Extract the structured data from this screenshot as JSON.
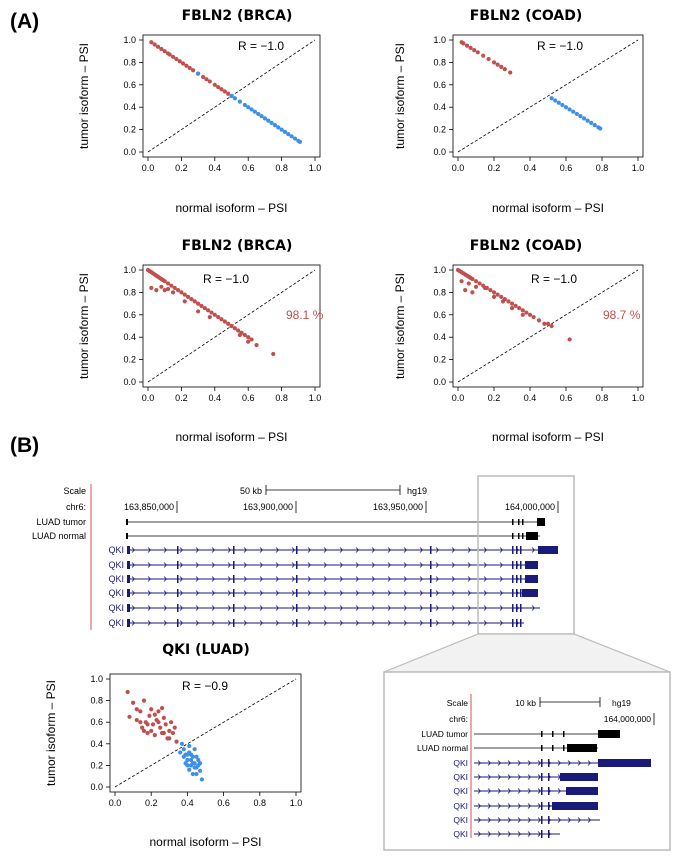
{
  "panel_labels": {
    "a": "(A)",
    "b": "(B)"
  },
  "colors": {
    "tumor": "#c0504d",
    "normal": "#3d8fe8",
    "navy": "#1a1a7a",
    "red_line": "#d05060",
    "gray_frame": "#bbbbbb"
  },
  "chart_data": [
    {
      "type": "scatter",
      "title": "FBLN2 (BRCA)",
      "xlabel": "normal isoform – PSI",
      "ylabel": "tumor isoform – PSI",
      "xlim": [
        0,
        1
      ],
      "ylim": [
        0,
        1
      ],
      "xticks": [
        "0.0",
        "0.2",
        "0.4",
        "0.6",
        "0.8",
        "1.0"
      ],
      "yticks": [
        "0.0",
        "0.2",
        "0.4",
        "0.6",
        "0.8",
        "1.0"
      ],
      "annotation": "R = −1.0",
      "diagonal": true,
      "series": [
        {
          "color": "tumor",
          "points": [
            [
              0.02,
              0.98
            ],
            [
              0.04,
              0.96
            ],
            [
              0.06,
              0.94
            ],
            [
              0.08,
              0.92
            ],
            [
              0.1,
              0.9
            ],
            [
              0.12,
              0.88
            ],
            [
              0.13,
              0.87
            ],
            [
              0.15,
              0.85
            ],
            [
              0.17,
              0.83
            ],
            [
              0.19,
              0.81
            ],
            [
              0.21,
              0.79
            ],
            [
              0.23,
              0.77
            ],
            [
              0.25,
              0.75
            ],
            [
              0.27,
              0.73
            ],
            [
              0.3,
              0.7
            ],
            [
              0.33,
              0.67
            ],
            [
              0.35,
              0.65
            ],
            [
              0.37,
              0.63
            ],
            [
              0.4,
              0.6
            ],
            [
              0.42,
              0.58
            ],
            [
              0.44,
              0.56
            ],
            [
              0.46,
              0.54
            ],
            [
              0.48,
              0.52
            ]
          ]
        },
        {
          "color": "normal",
          "points": [
            [
              0.3,
              0.7
            ],
            [
              0.5,
              0.5
            ],
            [
              0.52,
              0.48
            ],
            [
              0.55,
              0.45
            ],
            [
              0.58,
              0.42
            ],
            [
              0.6,
              0.4
            ],
            [
              0.62,
              0.38
            ],
            [
              0.64,
              0.36
            ],
            [
              0.66,
              0.34
            ],
            [
              0.68,
              0.32
            ],
            [
              0.7,
              0.3
            ],
            [
              0.72,
              0.28
            ],
            [
              0.74,
              0.26
            ],
            [
              0.76,
              0.24
            ],
            [
              0.78,
              0.22
            ],
            [
              0.8,
              0.2
            ],
            [
              0.82,
              0.18
            ],
            [
              0.84,
              0.16
            ],
            [
              0.86,
              0.14
            ],
            [
              0.88,
              0.12
            ],
            [
              0.9,
              0.1
            ],
            [
              0.91,
              0.09
            ]
          ]
        }
      ]
    },
    {
      "type": "scatter",
      "title": "FBLN2 (COAD)",
      "xlabel": "normal isoform – PSI",
      "ylabel": "tumor isoform – PSI",
      "xlim": [
        0,
        1
      ],
      "ylim": [
        0,
        1
      ],
      "xticks": [
        "0.0",
        "0.2",
        "0.4",
        "0.6",
        "0.8",
        "1.0"
      ],
      "yticks": [
        "0.0",
        "0.2",
        "0.4",
        "0.6",
        "0.8",
        "1.0"
      ],
      "annotation": "R = −1.0",
      "diagonal": true,
      "series": [
        {
          "color": "tumor",
          "points": [
            [
              0.02,
              0.98
            ],
            [
              0.03,
              0.97
            ],
            [
              0.05,
              0.95
            ],
            [
              0.07,
              0.93
            ],
            [
              0.09,
              0.91
            ],
            [
              0.11,
              0.89
            ],
            [
              0.14,
              0.86
            ],
            [
              0.17,
              0.83
            ],
            [
              0.2,
              0.8
            ],
            [
              0.22,
              0.78
            ],
            [
              0.24,
              0.76
            ],
            [
              0.26,
              0.74
            ],
            [
              0.29,
              0.71
            ]
          ]
        },
        {
          "color": "normal",
          "points": [
            [
              0.52,
              0.48
            ],
            [
              0.54,
              0.46
            ],
            [
              0.56,
              0.44
            ],
            [
              0.58,
              0.42
            ],
            [
              0.6,
              0.4
            ],
            [
              0.62,
              0.38
            ],
            [
              0.64,
              0.36
            ],
            [
              0.66,
              0.34
            ],
            [
              0.68,
              0.32
            ],
            [
              0.7,
              0.3
            ],
            [
              0.72,
              0.28
            ],
            [
              0.74,
              0.26
            ],
            [
              0.76,
              0.24
            ],
            [
              0.78,
              0.22
            ],
            [
              0.79,
              0.21
            ]
          ]
        }
      ]
    },
    {
      "type": "scatter",
      "title": "FBLN2 (BRCA)",
      "xlabel": "normal isoform – PSI",
      "ylabel": "tumor isoform – PSI",
      "xlim": [
        0,
        1
      ],
      "ylim": [
        0,
        1
      ],
      "xticks": [
        "0.0",
        "0.2",
        "0.4",
        "0.6",
        "0.8",
        "1.0"
      ],
      "yticks": [
        "0.0",
        "0.2",
        "0.4",
        "0.6",
        "0.8",
        "1.0"
      ],
      "annotation": "R = −1.0",
      "percent_label": "98.1 %",
      "diagonal": true,
      "series": [
        {
          "color": "tumor",
          "points": [
            [
              0.0,
              1.0
            ],
            [
              0.01,
              0.99
            ],
            [
              0.02,
              0.98
            ],
            [
              0.03,
              0.97
            ],
            [
              0.04,
              0.96
            ],
            [
              0.05,
              0.95
            ],
            [
              0.06,
              0.94
            ],
            [
              0.07,
              0.93
            ],
            [
              0.08,
              0.92
            ],
            [
              0.09,
              0.91
            ],
            [
              0.1,
              0.9
            ],
            [
              0.12,
              0.88
            ],
            [
              0.14,
              0.86
            ],
            [
              0.16,
              0.84
            ],
            [
              0.18,
              0.82
            ],
            [
              0.2,
              0.8
            ],
            [
              0.22,
              0.78
            ],
            [
              0.24,
              0.76
            ],
            [
              0.26,
              0.74
            ],
            [
              0.28,
              0.72
            ],
            [
              0.3,
              0.7
            ],
            [
              0.32,
              0.68
            ],
            [
              0.34,
              0.66
            ],
            [
              0.36,
              0.64
            ],
            [
              0.38,
              0.62
            ],
            [
              0.4,
              0.6
            ],
            [
              0.42,
              0.58
            ],
            [
              0.44,
              0.56
            ],
            [
              0.46,
              0.54
            ],
            [
              0.48,
              0.52
            ],
            [
              0.5,
              0.5
            ],
            [
              0.52,
              0.48
            ],
            [
              0.54,
              0.46
            ],
            [
              0.56,
              0.44
            ],
            [
              0.58,
              0.42
            ],
            [
              0.6,
              0.4
            ],
            [
              0.62,
              0.38
            ],
            [
              0.05,
              0.82
            ],
            [
              0.08,
              0.85
            ],
            [
              0.1,
              0.82
            ],
            [
              0.15,
              0.8
            ],
            [
              0.22,
              0.72
            ],
            [
              0.3,
              0.63
            ],
            [
              0.37,
              0.58
            ],
            [
              0.55,
              0.42
            ],
            [
              0.6,
              0.36
            ],
            [
              0.65,
              0.33
            ],
            [
              0.75,
              0.25
            ],
            [
              0.02,
              0.84
            ],
            [
              0.12,
              0.83
            ]
          ]
        }
      ]
    },
    {
      "type": "scatter",
      "title": "FBLN2 (COAD)",
      "xlabel": "normal isoform – PSI",
      "ylabel": "tumor isoform – PSI",
      "xlim": [
        0,
        1
      ],
      "ylim": [
        0,
        1
      ],
      "xticks": [
        "0.0",
        "0.2",
        "0.4",
        "0.6",
        "0.8",
        "1.0"
      ],
      "yticks": [
        "0.0",
        "0.2",
        "0.4",
        "0.6",
        "0.8",
        "1.0"
      ],
      "annotation": "R = −1.0",
      "percent_label": "98.7 %",
      "diagonal": true,
      "series": [
        {
          "color": "tumor",
          "points": [
            [
              0.0,
              1.0
            ],
            [
              0.01,
              0.99
            ],
            [
              0.02,
              0.98
            ],
            [
              0.03,
              0.97
            ],
            [
              0.04,
              0.96
            ],
            [
              0.05,
              0.95
            ],
            [
              0.06,
              0.94
            ],
            [
              0.07,
              0.93
            ],
            [
              0.08,
              0.92
            ],
            [
              0.1,
              0.9
            ],
            [
              0.12,
              0.88
            ],
            [
              0.14,
              0.86
            ],
            [
              0.16,
              0.84
            ],
            [
              0.18,
              0.82
            ],
            [
              0.2,
              0.8
            ],
            [
              0.22,
              0.78
            ],
            [
              0.24,
              0.76
            ],
            [
              0.26,
              0.74
            ],
            [
              0.28,
              0.72
            ],
            [
              0.3,
              0.7
            ],
            [
              0.32,
              0.68
            ],
            [
              0.34,
              0.66
            ],
            [
              0.36,
              0.64
            ],
            [
              0.38,
              0.62
            ],
            [
              0.4,
              0.6
            ],
            [
              0.42,
              0.58
            ],
            [
              0.45,
              0.55
            ],
            [
              0.48,
              0.52
            ],
            [
              0.06,
              0.88
            ],
            [
              0.1,
              0.85
            ],
            [
              0.15,
              0.84
            ],
            [
              0.04,
              0.82
            ],
            [
              0.2,
              0.76
            ],
            [
              0.25,
              0.72
            ],
            [
              0.3,
              0.66
            ],
            [
              0.36,
              0.6
            ],
            [
              0.5,
              0.52
            ],
            [
              0.52,
              0.5
            ],
            [
              0.62,
              0.38
            ],
            [
              0.02,
              0.9
            ],
            [
              0.08,
              0.8
            ]
          ]
        }
      ]
    },
    {
      "type": "scatter",
      "title": "QKI (LUAD)",
      "xlabel": "normal isoform – PSI",
      "ylabel": "tumor isoform – PSI",
      "xlim": [
        0,
        1
      ],
      "ylim": [
        0,
        1
      ],
      "xticks": [
        "0.0",
        "0.2",
        "0.4",
        "0.6",
        "0.8",
        "1.0"
      ],
      "yticks": [
        "0.0",
        "0.2",
        "0.4",
        "0.6",
        "0.8",
        "1.0"
      ],
      "annotation": "R = −0.9",
      "diagonal": true,
      "series": [
        {
          "color": "tumor",
          "points": [
            [
              0.07,
              0.88
            ],
            [
              0.1,
              0.78
            ],
            [
              0.12,
              0.62
            ],
            [
              0.08,
              0.65
            ],
            [
              0.14,
              0.7
            ],
            [
              0.15,
              0.55
            ],
            [
              0.16,
              0.8
            ],
            [
              0.17,
              0.6
            ],
            [
              0.18,
              0.5
            ],
            [
              0.19,
              0.66
            ],
            [
              0.2,
              0.72
            ],
            [
              0.21,
              0.58
            ],
            [
              0.22,
              0.48
            ],
            [
              0.23,
              0.62
            ],
            [
              0.24,
              0.7
            ],
            [
              0.25,
              0.55
            ],
            [
              0.26,
              0.5
            ],
            [
              0.27,
              0.64
            ],
            [
              0.28,
              0.58
            ],
            [
              0.29,
              0.45
            ],
            [
              0.3,
              0.52
            ],
            [
              0.31,
              0.6
            ],
            [
              0.32,
              0.5
            ],
            [
              0.33,
              0.55
            ],
            [
              0.2,
              0.52
            ],
            [
              0.24,
              0.6
            ],
            [
              0.27,
              0.5
            ],
            [
              0.18,
              0.58
            ],
            [
              0.22,
              0.67
            ],
            [
              0.3,
              0.45
            ],
            [
              0.16,
              0.52
            ],
            [
              0.14,
              0.6
            ],
            [
              0.34,
              0.42
            ],
            [
              0.26,
              0.73
            ],
            [
              0.12,
              0.72
            ]
          ]
        },
        {
          "color": "normal",
          "points": [
            [
              0.37,
              0.4
            ],
            [
              0.38,
              0.35
            ],
            [
              0.39,
              0.3
            ],
            [
              0.4,
              0.25
            ],
            [
              0.41,
              0.32
            ],
            [
              0.42,
              0.2
            ],
            [
              0.43,
              0.28
            ],
            [
              0.44,
              0.22
            ],
            [
              0.45,
              0.18
            ],
            [
              0.46,
              0.25
            ],
            [
              0.47,
              0.15
            ],
            [
              0.4,
              0.2
            ],
            [
              0.42,
              0.3
            ],
            [
              0.44,
              0.35
            ],
            [
              0.38,
              0.28
            ],
            [
              0.41,
              0.16
            ],
            [
              0.43,
              0.12
            ],
            [
              0.45,
              0.28
            ],
            [
              0.46,
              0.2
            ],
            [
              0.39,
              0.22
            ],
            [
              0.42,
              0.25
            ],
            [
              0.44,
              0.18
            ],
            [
              0.48,
              0.07
            ],
            [
              0.36,
              0.32
            ],
            [
              0.41,
              0.38
            ],
            [
              0.43,
              0.22
            ],
            [
              0.47,
              0.22
            ],
            [
              0.4,
              0.3
            ],
            [
              0.45,
              0.12
            ]
          ]
        }
      ]
    }
  ],
  "genome_browser": {
    "scale_label": "Scale",
    "scale_value": "50 kb",
    "assembly": "hg19",
    "chrom_label": "chr6:",
    "positions": [
      "163,850,000",
      "163,900,000",
      "163,950,000",
      "164,000,000"
    ],
    "tracks": [
      "LUAD tumor",
      "LUAD normal",
      "QKI",
      "QKI",
      "QKI",
      "QKI",
      "QKI",
      "QKI"
    ]
  },
  "inset_browser": {
    "scale_label": "Scale",
    "scale_value": "10 kb",
    "assembly": "hg19",
    "chrom_label": "chr6:",
    "positions": [
      "164,000,000"
    ],
    "tracks": [
      "LUAD tumor",
      "LUAD normal",
      "QKI",
      "QKI",
      "QKI",
      "QKI",
      "QKI",
      "QKI"
    ]
  }
}
